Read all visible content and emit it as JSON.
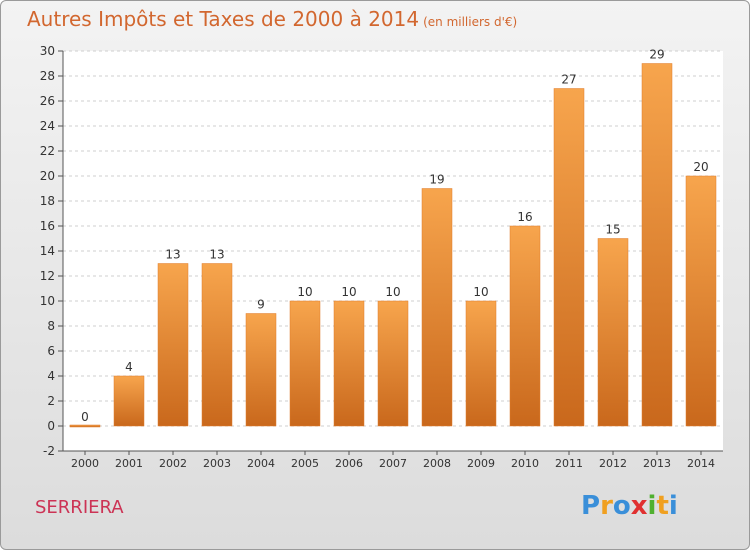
{
  "title": "Autres Impôts et Taxes de 2000 à 2014",
  "unit_label": "(en milliers d'€)",
  "commune": "SERRIERA",
  "logo": {
    "text": "Proxiti",
    "colors": [
      "#3a8fd9",
      "#f0a020",
      "#3a8fd9",
      "#e03030",
      "#50b030",
      "#f0a020",
      "#3a8fd9"
    ]
  },
  "chart_data": {
    "type": "bar",
    "categories": [
      "2000",
      "2001",
      "2002",
      "2003",
      "2004",
      "2005",
      "2006",
      "2007",
      "2008",
      "2009",
      "2010",
      "2011",
      "2012",
      "2013",
      "2014"
    ],
    "values": [
      0,
      4,
      13,
      13,
      9,
      10,
      10,
      10,
      19,
      10,
      16,
      27,
      15,
      29,
      20
    ],
    "ylim": [
      -2,
      30
    ],
    "yticks": [
      -2,
      0,
      2,
      4,
      6,
      8,
      10,
      12,
      14,
      16,
      18,
      20,
      22,
      24,
      26,
      28,
      30
    ],
    "grid": true,
    "bar_color": "#f0943c",
    "bar_color_dark": "#c9681c"
  }
}
